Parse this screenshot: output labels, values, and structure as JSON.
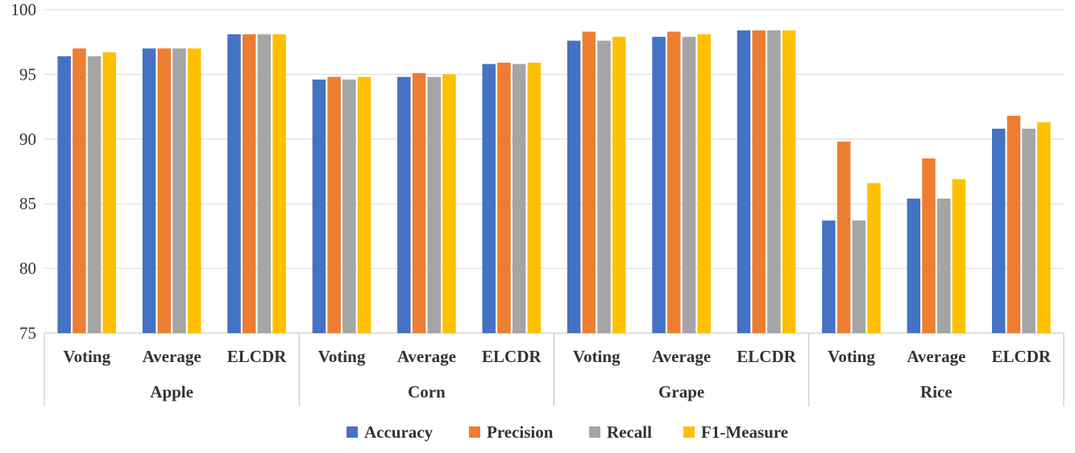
{
  "chart_data": {
    "type": "bar",
    "title": "",
    "xlabel": "",
    "ylabel": "",
    "ylim": [
      75,
      100
    ],
    "yticks": [
      75,
      80,
      85,
      90,
      95,
      100
    ],
    "groups": [
      {
        "name": "Apple",
        "methods": [
          "Voting",
          "Average",
          "ELCDR"
        ]
      },
      {
        "name": "Corn",
        "methods": [
          "Voting",
          "Average",
          "ELCDR"
        ]
      },
      {
        "name": "Grape",
        "methods": [
          "Voting",
          "Average",
          "ELCDR"
        ]
      },
      {
        "name": "Rice",
        "methods": [
          "Voting",
          "Average",
          "ELCDR"
        ]
      }
    ],
    "series": [
      {
        "name": "Accuracy",
        "color": "#4472C4",
        "values": [
          96.4,
          97.0,
          98.1,
          94.6,
          94.8,
          95.8,
          97.6,
          97.9,
          98.4,
          83.7,
          85.4,
          90.8
        ]
      },
      {
        "name": "Precision",
        "color": "#ED7D31",
        "values": [
          97.0,
          97.0,
          98.1,
          94.8,
          95.1,
          95.9,
          98.3,
          98.3,
          98.4,
          89.8,
          88.5,
          91.8
        ]
      },
      {
        "name": "Recall",
        "color": "#A5A5A5",
        "values": [
          96.4,
          97.0,
          98.1,
          94.6,
          94.8,
          95.8,
          97.6,
          97.9,
          98.4,
          83.7,
          85.4,
          90.8
        ]
      },
      {
        "name": "F1-Measure",
        "color": "#FFC000",
        "values": [
          96.7,
          97.0,
          98.1,
          94.8,
          95.0,
          95.9,
          97.9,
          98.1,
          98.4,
          86.6,
          86.9,
          91.3
        ]
      }
    ],
    "legend_position": "bottom-center",
    "grid": true
  }
}
